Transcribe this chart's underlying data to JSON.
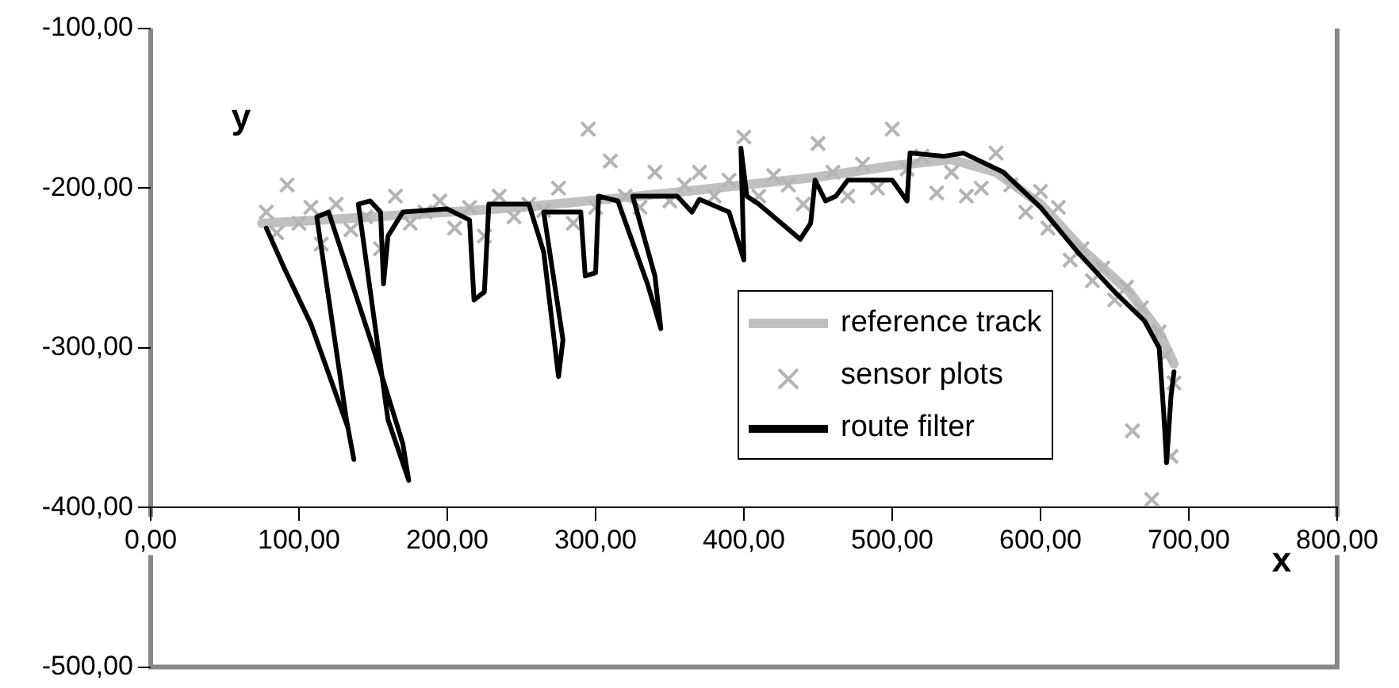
{
  "chart_data": {
    "type": "scatter",
    "xlabel": "x",
    "ylabel": "y",
    "xlim": [
      0,
      800
    ],
    "ylim": [
      -500,
      -100
    ],
    "xticks": [
      {
        "value": 0,
        "label": "0,00"
      },
      {
        "value": 100,
        "label": "100,00"
      },
      {
        "value": 200,
        "label": "200,00"
      },
      {
        "value": 300,
        "label": "300,00"
      },
      {
        "value": 400,
        "label": "400,00"
      },
      {
        "value": 500,
        "label": "500,00"
      },
      {
        "value": 600,
        "label": "600,00"
      },
      {
        "value": 700,
        "label": "700,00"
      },
      {
        "value": 800,
        "label": "800,00"
      }
    ],
    "yticks": [
      {
        "value": -100,
        "label": "-100,00"
      },
      {
        "value": -200,
        "label": "-200,00"
      },
      {
        "value": -300,
        "label": "-300,00"
      },
      {
        "value": -400,
        "label": "-400,00"
      },
      {
        "value": -500,
        "label": "-500,00"
      }
    ],
    "grid": false,
    "legend": "center",
    "series": [
      {
        "name": "reference track",
        "type": "line",
        "color": "#c0c0c0",
        "marker": "none",
        "x": [
          75,
          150,
          250,
          350,
          450,
          500,
          540,
          570,
          600,
          630,
          660,
          680,
          690
        ],
        "values": [
          -222,
          -218,
          -212,
          -203,
          -193,
          -186,
          -182,
          -190,
          -210,
          -240,
          -265,
          -290,
          -310
        ]
      },
      {
        "name": "sensor plots",
        "type": "scatter",
        "color": "#b4b4b4",
        "marker": "cross",
        "x": [
          78,
          85,
          92,
          100,
          108,
          115,
          125,
          135,
          145,
          155,
          165,
          175,
          185,
          195,
          205,
          215,
          225,
          235,
          245,
          255,
          265,
          275,
          285,
          295,
          300,
          310,
          320,
          330,
          340,
          350,
          360,
          370,
          380,
          390,
          400,
          410,
          420,
          430,
          440,
          450,
          460,
          470,
          480,
          490,
          500,
          510,
          520,
          530,
          540,
          550,
          560,
          570,
          580,
          590,
          600,
          605,
          612,
          620,
          628,
          635,
          642,
          650,
          658,
          662,
          668,
          675,
          680,
          684,
          688,
          690
        ],
        "values": [
          -215,
          -228,
          -198,
          -222,
          -212,
          -235,
          -210,
          -226,
          -218,
          -238,
          -205,
          -222,
          -215,
          -208,
          -225,
          -212,
          -230,
          -205,
          -218,
          -210,
          -214,
          -200,
          -222,
          -163,
          -212,
          -183,
          -205,
          -212,
          -190,
          -208,
          -198,
          -190,
          -205,
          -195,
          -168,
          -205,
          -192,
          -198,
          -210,
          -172,
          -190,
          -205,
          -185,
          -200,
          -163,
          -188,
          -180,
          -203,
          -190,
          -205,
          -200,
          -178,
          -198,
          -215,
          -202,
          -225,
          -212,
          -245,
          -238,
          -258,
          -250,
          -270,
          -262,
          -352,
          -275,
          -395,
          -290,
          -305,
          -368,
          -322
        ]
      },
      {
        "name": "route filter",
        "type": "line",
        "color": "#000000",
        "marker": "none",
        "x": [
          78,
          90,
          108,
          133,
          137,
          132,
          112,
          120,
          150,
          170,
          174,
          160,
          140,
          148,
          155,
          157,
          160,
          170,
          200,
          215,
          218,
          225,
          228,
          255,
          265,
          275,
          278,
          265,
          290,
          293,
          300,
          302,
          315,
          335,
          344,
          340,
          325,
          355,
          365,
          370,
          390,
          400,
          398,
          402,
          410,
          438,
          445,
          448,
          455,
          462,
          470,
          500,
          510,
          512,
          535,
          548,
          575,
          600,
          625,
          650,
          670,
          680,
          683,
          685,
          688,
          690
        ],
        "values": [
          -225,
          -250,
          -285,
          -350,
          -370,
          -345,
          -218,
          -215,
          -300,
          -360,
          -383,
          -345,
          -210,
          -208,
          -215,
          -260,
          -230,
          -215,
          -213,
          -220,
          -270,
          -265,
          -210,
          -210,
          -240,
          -318,
          -295,
          -215,
          -215,
          -255,
          -253,
          -205,
          -208,
          -260,
          -288,
          -255,
          -205,
          -205,
          -215,
          -207,
          -215,
          -245,
          -175,
          -205,
          -210,
          -232,
          -222,
          -195,
          -208,
          -205,
          -195,
          -195,
          -208,
          -178,
          -180,
          -178,
          -190,
          -212,
          -240,
          -265,
          -283,
          -300,
          -340,
          -372,
          -330,
          -315
        ]
      }
    ]
  }
}
